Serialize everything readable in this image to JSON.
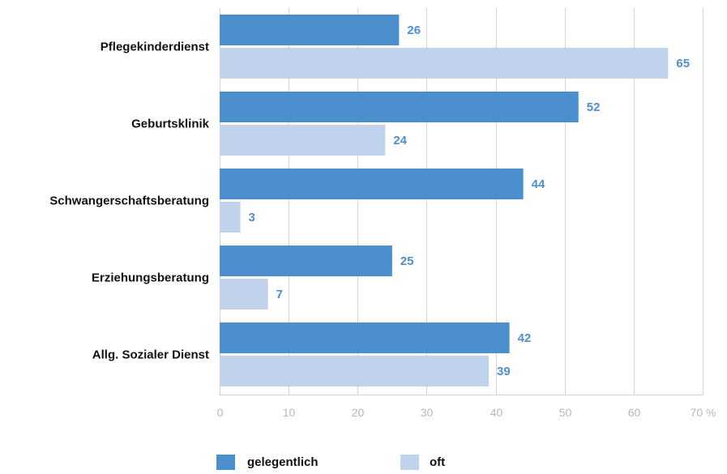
{
  "chart_data": {
    "type": "bar",
    "orientation": "horizontal",
    "categories": [
      "Pflegekinderdienst",
      "Geburtsklinik",
      "Schwangerschaftsberatung",
      "Erziehungsberatung",
      "Allg. Sozialer Dienst"
    ],
    "series": [
      {
        "name": "gelegentlich",
        "color": "#4b8fcd",
        "values": [
          26,
          52,
          44,
          25,
          42
        ]
      },
      {
        "name": "oft",
        "color": "#c1d3ec",
        "values": [
          65,
          24,
          3,
          7,
          39
        ]
      }
    ],
    "xlim": [
      0,
      70
    ],
    "xticks": [
      {
        "value": 0,
        "label": "0"
      },
      {
        "value": 10,
        "label": "10"
      },
      {
        "value": 20,
        "label": "20"
      },
      {
        "value": 30,
        "label": "30"
      },
      {
        "value": 40,
        "label": "40"
      },
      {
        "value": 50,
        "label": "50"
      },
      {
        "value": 60,
        "label": "60"
      },
      {
        "value": 70,
        "label": "70 %"
      }
    ],
    "grid": true,
    "legend_position": "bottom",
    "data_labels": true,
    "label_color": "#4d8fcf",
    "gridline_color": "#d3d3d3"
  }
}
